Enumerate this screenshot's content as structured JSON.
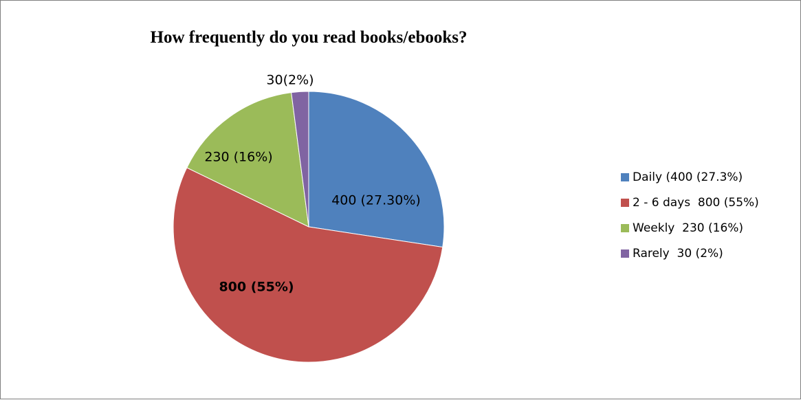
{
  "chart_data": {
    "type": "pie",
    "title": "How frequently do you read books/ebooks?",
    "categories": [
      "Daily",
      "2 - 6 days",
      "Weekly",
      "Rarely"
    ],
    "values": [
      400,
      800,
      230,
      30
    ],
    "colors": [
      "#4f81bd",
      "#c0504d",
      "#9bbb59",
      "#8064a2"
    ],
    "data_labels": [
      "400 (27.30%)",
      "800 (55%)",
      "230 (16%)",
      "30(2%)"
    ],
    "data_label_bold": [
      false,
      true,
      false,
      false
    ],
    "legend": {
      "position": "right",
      "entries": [
        "Daily (400 (27.3%)",
        "2 - 6 days  800 (55%)",
        "Weekly  230 (16%)",
        "Rarely  30 (2%)"
      ]
    }
  }
}
